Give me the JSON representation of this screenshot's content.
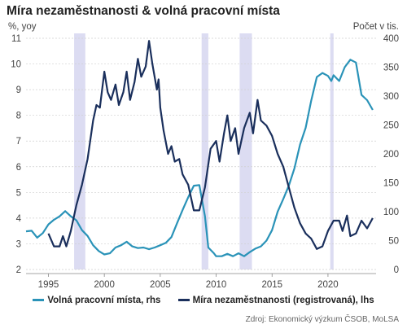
{
  "chart_data": {
    "type": "line",
    "title": "Míra nezaměstnanosti & volná pracovní místa",
    "ylabel_left": "%, yoy",
    "ylabel_right": "Počet v tis.",
    "x_ticks": [
      1995,
      2000,
      2005,
      2010,
      2015,
      2020
    ],
    "x_range": [
      1993,
      2024.3
    ],
    "y_left": {
      "range": [
        2,
        11
      ],
      "ticks": [
        2,
        3,
        4,
        5,
        6,
        7,
        8,
        9,
        10,
        11
      ]
    },
    "y_right": {
      "range": [
        0,
        400
      ],
      "ticks": [
        0,
        50,
        100,
        150,
        200,
        250,
        300,
        350,
        400
      ]
    },
    "shaded_periods": [
      [
        1997.3,
        1998.3
      ],
      [
        2008.7,
        2009.3
      ],
      [
        2012.1,
        2013.2
      ],
      [
        2020.2,
        2020.5
      ]
    ],
    "series": [
      {
        "name": "Volná pracovní místa, rhs",
        "axis": "right",
        "color": "#2a93b8",
        "points": [
          [
            1993.0,
            66
          ],
          [
            1993.5,
            67
          ],
          [
            1994.0,
            55
          ],
          [
            1994.5,
            63
          ],
          [
            1995.0,
            78
          ],
          [
            1995.5,
            86
          ],
          [
            1996.0,
            92
          ],
          [
            1996.5,
            101
          ],
          [
            1997.0,
            92
          ],
          [
            1997.5,
            85
          ],
          [
            1998.0,
            68
          ],
          [
            1998.5,
            58
          ],
          [
            1999.0,
            42
          ],
          [
            1999.5,
            32
          ],
          [
            2000.0,
            26
          ],
          [
            2000.5,
            28
          ],
          [
            2001.0,
            38
          ],
          [
            2001.5,
            42
          ],
          [
            2002.0,
            48
          ],
          [
            2002.5,
            40
          ],
          [
            2003.0,
            37
          ],
          [
            2003.5,
            38
          ],
          [
            2004.0,
            35
          ],
          [
            2004.5,
            38
          ],
          [
            2005.0,
            42
          ],
          [
            2005.5,
            46
          ],
          [
            2006.0,
            56
          ],
          [
            2006.5,
            80
          ],
          [
            2007.0,
            103
          ],
          [
            2007.5,
            125
          ],
          [
            2008.0,
            145
          ],
          [
            2008.5,
            146
          ],
          [
            2009.0,
            92
          ],
          [
            2009.3,
            38
          ],
          [
            2009.8,
            28
          ],
          [
            2010.0,
            23
          ],
          [
            2010.5,
            23
          ],
          [
            2011.0,
            27
          ],
          [
            2011.5,
            23
          ],
          [
            2012.0,
            28
          ],
          [
            2012.5,
            23
          ],
          [
            2013.0,
            30
          ],
          [
            2013.5,
            36
          ],
          [
            2014.0,
            40
          ],
          [
            2014.5,
            50
          ],
          [
            2015.0,
            68
          ],
          [
            2015.5,
            100
          ],
          [
            2016.0,
            122
          ],
          [
            2016.5,
            145
          ],
          [
            2017.0,
            175
          ],
          [
            2017.5,
            216
          ],
          [
            2018.0,
            245
          ],
          [
            2018.5,
            292
          ],
          [
            2019.0,
            333
          ],
          [
            2019.5,
            340
          ],
          [
            2020.0,
            335
          ],
          [
            2020.3,
            326
          ],
          [
            2020.5,
            336
          ],
          [
            2021.0,
            326
          ],
          [
            2021.5,
            350
          ],
          [
            2022.0,
            363
          ],
          [
            2022.5,
            358
          ],
          [
            2023.0,
            302
          ],
          [
            2023.5,
            293
          ],
          [
            2024.0,
            276
          ]
        ]
      },
      {
        "name": "Míra nezaměstnanosti (registrovaná), lhs",
        "axis": "left",
        "color": "#1a2f5c",
        "points": [
          [
            1995.0,
            3.4
          ],
          [
            1995.5,
            2.9
          ],
          [
            1996.0,
            2.9
          ],
          [
            1996.3,
            3.3
          ],
          [
            1996.6,
            2.9
          ],
          [
            1997.0,
            3.5
          ],
          [
            1997.5,
            4.5
          ],
          [
            1998.0,
            5.3
          ],
          [
            1998.5,
            6.3
          ],
          [
            1999.0,
            7.8
          ],
          [
            1999.3,
            8.4
          ],
          [
            1999.6,
            8.3
          ],
          [
            2000.0,
            9.7
          ],
          [
            2000.3,
            8.9
          ],
          [
            2000.6,
            8.6
          ],
          [
            2001.0,
            9.2
          ],
          [
            2001.3,
            8.4
          ],
          [
            2001.7,
            8.9
          ],
          [
            2002.0,
            9.7
          ],
          [
            2002.3,
            8.6
          ],
          [
            2002.7,
            9.3
          ],
          [
            2003.0,
            10.2
          ],
          [
            2003.3,
            9.5
          ],
          [
            2003.7,
            9.9
          ],
          [
            2004.0,
            10.9
          ],
          [
            2004.3,
            10.0
          ],
          [
            2004.7,
            9.0
          ],
          [
            2004.85,
            9.4
          ],
          [
            2005.0,
            8.3
          ],
          [
            2005.3,
            7.4
          ],
          [
            2005.7,
            6.5
          ],
          [
            2006.0,
            6.8
          ],
          [
            2006.3,
            6.2
          ],
          [
            2006.7,
            6.3
          ],
          [
            2007.0,
            5.7
          ],
          [
            2007.5,
            5.3
          ],
          [
            2008.0,
            4.3
          ],
          [
            2008.5,
            4.3
          ],
          [
            2009.0,
            5.2
          ],
          [
            2009.5,
            6.7
          ],
          [
            2010.0,
            7.0
          ],
          [
            2010.3,
            6.2
          ],
          [
            2010.7,
            7.3
          ],
          [
            2011.0,
            8.0
          ],
          [
            2011.3,
            7.0
          ],
          [
            2011.7,
            7.5
          ],
          [
            2012.0,
            6.5
          ],
          [
            2012.5,
            7.5
          ],
          [
            2013.0,
            8.1
          ],
          [
            2013.3,
            7.3
          ],
          [
            2013.7,
            8.6
          ],
          [
            2014.0,
            7.8
          ],
          [
            2014.5,
            7.6
          ],
          [
            2015.0,
            7.2
          ],
          [
            2015.5,
            6.5
          ],
          [
            2016.0,
            6.0
          ],
          [
            2016.5,
            5.2
          ],
          [
            2017.0,
            4.4
          ],
          [
            2017.5,
            3.8
          ],
          [
            2018.0,
            3.4
          ],
          [
            2018.5,
            3.2
          ],
          [
            2019.0,
            2.8
          ],
          [
            2019.5,
            2.9
          ],
          [
            2020.0,
            3.5
          ],
          [
            2020.5,
            3.9
          ],
          [
            2021.0,
            3.9
          ],
          [
            2021.3,
            3.5
          ],
          [
            2021.7,
            4.1
          ],
          [
            2022.0,
            3.3
          ],
          [
            2022.5,
            3.4
          ],
          [
            2023.0,
            3.9
          ],
          [
            2023.5,
            3.6
          ],
          [
            2024.0,
            4.0
          ]
        ]
      }
    ],
    "legend_position": "bottom"
  },
  "source": "Zdroj: Ekonomický výzkum ČSOB, MoLSA"
}
